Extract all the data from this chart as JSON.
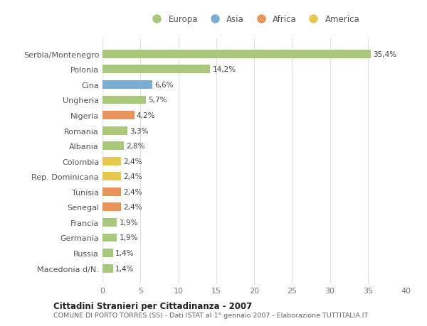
{
  "categories": [
    "Macedonia d/N.",
    "Russia",
    "Germania",
    "Francia",
    "Senegal",
    "Tunisia",
    "Rep. Dominicana",
    "Colombia",
    "Albania",
    "Romania",
    "Nigeria",
    "Ungheria",
    "Cina",
    "Polonia",
    "Serbia/Montenegro"
  ],
  "values": [
    1.4,
    1.4,
    1.9,
    1.9,
    2.4,
    2.4,
    2.4,
    2.4,
    2.8,
    3.3,
    4.2,
    5.7,
    6.6,
    14.2,
    35.4
  ],
  "labels": [
    "1,4%",
    "1,4%",
    "1,9%",
    "1,9%",
    "2,4%",
    "2,4%",
    "2,4%",
    "2,4%",
    "2,8%",
    "3,3%",
    "4,2%",
    "5,7%",
    "6,6%",
    "14,2%",
    "35,4%"
  ],
  "colors": [
    "#a8c87a",
    "#a8c87a",
    "#a8c87a",
    "#a8c87a",
    "#e8935a",
    "#e8935a",
    "#e8c84a",
    "#e8c84a",
    "#a8c87a",
    "#a8c87a",
    "#e8935a",
    "#a8c87a",
    "#7badd4",
    "#a8c87a",
    "#a8c87a"
  ],
  "legend": [
    {
      "label": "Europa",
      "color": "#a8c87a"
    },
    {
      "label": "Asia",
      "color": "#7badd4"
    },
    {
      "label": "Africa",
      "color": "#e8935a"
    },
    {
      "label": "America",
      "color": "#e8c84a"
    }
  ],
  "xlim": [
    0,
    40
  ],
  "xticks": [
    0,
    5,
    10,
    15,
    20,
    25,
    30,
    35,
    40
  ],
  "title1": "Cittadini Stranieri per Cittadinanza - 2007",
  "title2": "COMUNE DI PORTO TORRES (SS) - Dati ISTAT al 1° gennaio 2007 - Elaborazione TUTTITALIA.IT",
  "bg_color": "#ffffff",
  "bar_height": 0.55
}
